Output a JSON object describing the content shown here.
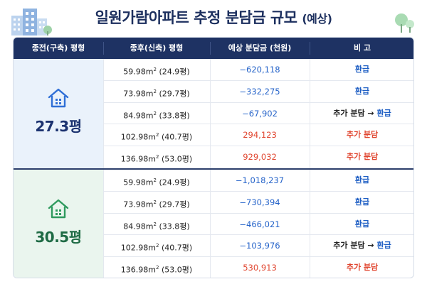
{
  "title": "일원가람아파트 추정 분담금 규모",
  "title_note": "(예상)",
  "columns": [
    "종전(구축) 평형",
    "종후(신축) 평형",
    "예상 분담금 (천원)",
    "비 고"
  ],
  "groups": [
    {
      "label": "27.3평",
      "accent": "#1c3370",
      "rows": [
        {
          "area_num": "59.98m",
          "area_sup": "2",
          "area_py": " (24.9평)",
          "cost": "−620,118",
          "note": "환급",
          "note_tail": ""
        },
        {
          "area_num": "73.98m",
          "area_sup": "2",
          "area_py": " (29.7평)",
          "cost": "−332,275",
          "note": "환급",
          "note_tail": ""
        },
        {
          "area_num": "84.98m",
          "area_sup": "2",
          "area_py": " (33.8평)",
          "cost": "−67,902",
          "note": "추가 분담 → ",
          "note_tail": "환급"
        },
        {
          "area_num": "102.98m",
          "area_sup": "2",
          "area_py": " (40.7평)",
          "cost": "294,123",
          "note": "추가 분담",
          "note_tail": ""
        },
        {
          "area_num": "136.98m",
          "area_sup": "2",
          "area_py": " (53.0평)",
          "cost": "929,032",
          "note": "추가 분담",
          "note_tail": ""
        }
      ]
    },
    {
      "label": "30.5평",
      "accent": "#1f6b45",
      "rows": [
        {
          "area_num": "59.98m",
          "area_sup": "2",
          "area_py": " (24.9평)",
          "cost": "−1,018,237",
          "note": "환급",
          "note_tail": ""
        },
        {
          "area_num": "73.98m",
          "area_sup": "2",
          "area_py": " (29.7평)",
          "cost": "−730,394",
          "note": "환급",
          "note_tail": ""
        },
        {
          "area_num": "84.98m",
          "area_sup": "2",
          "area_py": " (33.8평)",
          "cost": "−466,021",
          "note": "환급",
          "note_tail": ""
        },
        {
          "area_num": "102.98m",
          "area_sup": "2",
          "area_py": " (40.7평)",
          "cost": "−103,976",
          "note": "추가 분담 → ",
          "note_tail": "환급"
        },
        {
          "area_num": "136.98m",
          "area_sup": "2",
          "area_py": " (53.0평)",
          "cost": "530,913",
          "note": "추가 분담",
          "note_tail": ""
        }
      ]
    }
  ]
}
